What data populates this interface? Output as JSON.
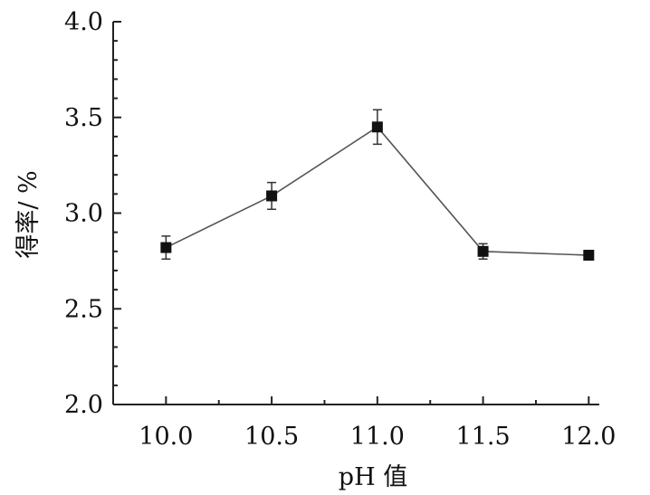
{
  "chart_data": {
    "type": "line",
    "xlabel": "pH 值",
    "ylabel": "得率/ %",
    "xlim": [
      9.75,
      12.05
    ],
    "ylim": [
      2.0,
      4.0
    ],
    "x_ticks": [
      10.0,
      10.5,
      11.0,
      11.5,
      12.0
    ],
    "x_tick_labels": [
      "10.0",
      "10.5",
      "11.0",
      "11.5",
      "12.0"
    ],
    "y_ticks": [
      2.0,
      2.5,
      3.0,
      3.5,
      4.0
    ],
    "y_tick_labels": [
      "2.0",
      "2.5",
      "3.0",
      "3.5",
      "4.0"
    ],
    "grid": false,
    "series": [
      {
        "x": [
          10.0,
          10.5,
          11.0,
          11.5,
          12.0
        ],
        "values": [
          2.82,
          3.09,
          3.45,
          2.8,
          2.78
        ],
        "error": [
          0.06,
          0.07,
          0.09,
          0.04,
          0.02
        ],
        "marker": "square",
        "color": "#111111"
      }
    ]
  }
}
